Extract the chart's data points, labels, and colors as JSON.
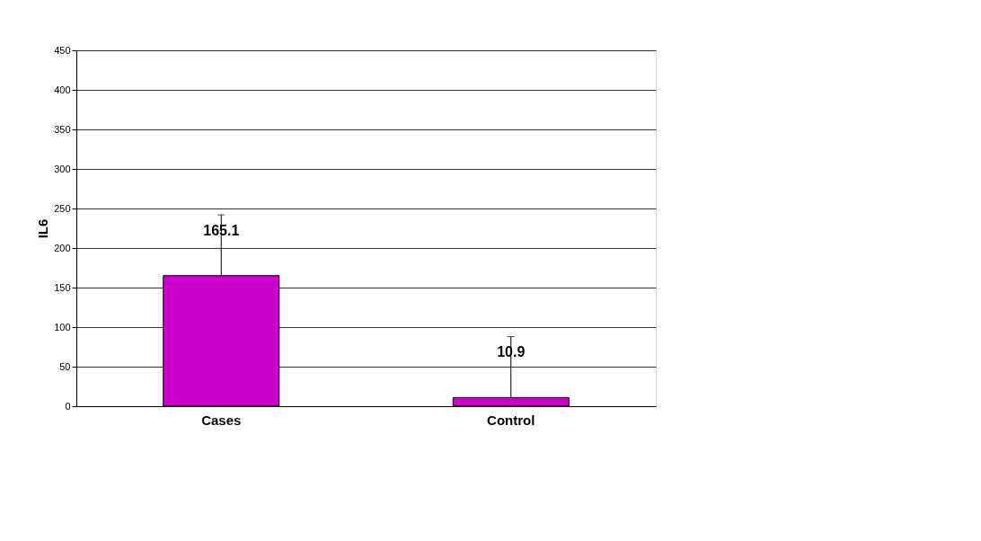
{
  "chart_data": {
    "type": "bar",
    "ylabel": "IL6",
    "categories": [
      "Cases",
      "Control"
    ],
    "values": [
      165.1,
      10.9
    ],
    "color": "#cc00cc",
    "errors": [
      [
        165.1,
        242
      ],
      [
        10.9,
        88
      ]
    ],
    "ylim": [
      0,
      450
    ],
    "yticks": [
      0,
      50,
      100,
      150,
      200,
      250,
      300,
      350,
      400,
      450
    ],
    "grid": "y",
    "data_labels": true
  }
}
